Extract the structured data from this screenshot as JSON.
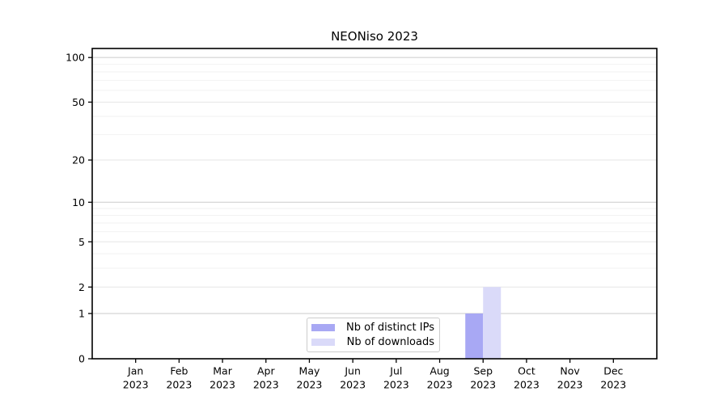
{
  "chart_data": {
    "type": "bar",
    "title": "NEONiso 2023",
    "categories": [
      "Jan 2023",
      "Feb 2023",
      "Mar 2023",
      "Apr 2023",
      "May 2023",
      "Jun 2023",
      "Jul 2023",
      "Aug 2023",
      "Sep 2023",
      "Oct 2023",
      "Nov 2023",
      "Dec 2023"
    ],
    "series": [
      {
        "name": "Nb of distinct IPs",
        "color": "#a8a8f4",
        "values": [
          0,
          0,
          0,
          0,
          0,
          0,
          0,
          0,
          1,
          0,
          0,
          0
        ]
      },
      {
        "name": "Nb of downloads",
        "color": "#dadaf9",
        "values": [
          0,
          0,
          0,
          0,
          0,
          0,
          0,
          0,
          2,
          0,
          0,
          0
        ]
      }
    ],
    "y_axis": {
      "scale": "log1p",
      "ticks": [
        0,
        1,
        2,
        5,
        10,
        20,
        50,
        100
      ],
      "minor_ticks": [
        3,
        4,
        6,
        7,
        8,
        9,
        30,
        40,
        60,
        70,
        80,
        90
      ],
      "max": 115
    },
    "legend": {
      "position": "lower center"
    },
    "grid": true
  }
}
